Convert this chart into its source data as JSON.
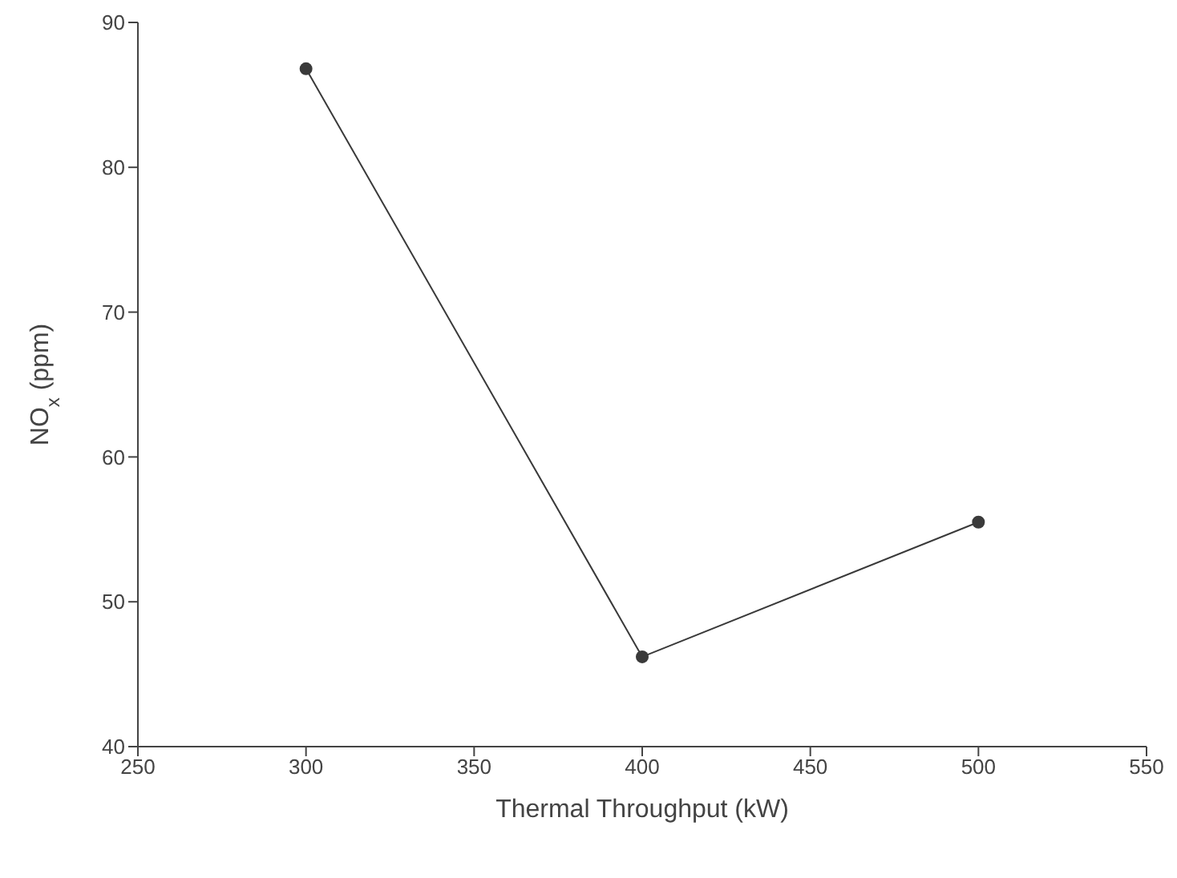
{
  "chart_data": {
    "type": "line",
    "xlabel": "Thermal Throughput (kW)",
    "ylabel": "NO$_{x}$ (ppm)",
    "x": [
      300,
      400,
      500
    ],
    "series": [
      {
        "color": "#3a3a3a",
        "values": [
          86.8,
          46.2,
          55.5
        ]
      }
    ],
    "xlim": [
      250,
      550
    ],
    "xticks": [
      250,
      300,
      350,
      400,
      450,
      500,
      550
    ],
    "ylim": [
      40,
      90
    ],
    "yticks": [
      40,
      50,
      60,
      70,
      80,
      90
    ],
    "marker": "circle",
    "line_style": "solid",
    "grid": false,
    "legend": false
  }
}
